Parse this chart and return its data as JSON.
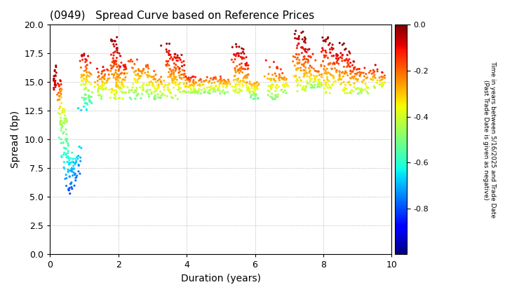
{
  "title": "(0949)   Spread Curve based on Reference Prices",
  "xlabel": "Duration (years)",
  "ylabel": "Spread (bp)",
  "colorbar_label": "Time in years between 5/16/2025 and Trade Date\n(Past Trade Date is given as negative)",
  "xlim": [
    0,
    10
  ],
  "ylim": [
    0.0,
    20.0
  ],
  "xticks": [
    0,
    2,
    4,
    6,
    8,
    10
  ],
  "yticks": [
    0.0,
    2.5,
    5.0,
    7.5,
    10.0,
    12.5,
    15.0,
    17.5,
    20.0
  ],
  "cmap": "jet",
  "vmin": -1.0,
  "vmax": 0.0,
  "colorbar_ticks": [
    0.0,
    -0.2,
    -0.4,
    -0.6,
    -0.8
  ],
  "background_color": "#ffffff",
  "grid_color": "#b0b0b0",
  "marker_size": 5,
  "figsize": [
    7.2,
    4.2
  ],
  "dpi": 100
}
